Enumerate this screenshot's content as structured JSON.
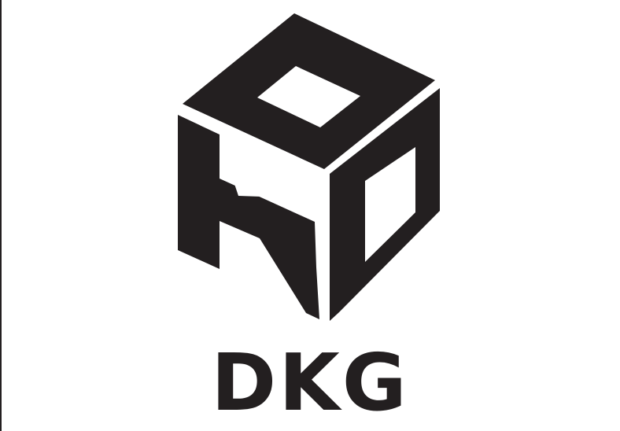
{
  "brand": {
    "name": "DKG",
    "ink_color": "#231f20",
    "background_color": "#ffffff"
  },
  "logo": {
    "icon": "dkg-cube-logo-icon"
  }
}
